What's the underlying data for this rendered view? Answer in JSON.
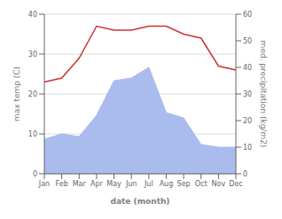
{
  "chart_data": {
    "type": "line",
    "categories": [
      "Jan",
      "Feb",
      "Mar",
      "Apr",
      "May",
      "Jun",
      "Jul",
      "Aug",
      "Sep",
      "Oct",
      "Nov",
      "Dec"
    ],
    "xlabel": "date (month)",
    "ylabel": "max temp (C)",
    "y2label": "med. precipitation (kg/m2)",
    "ylim": [
      0,
      40
    ],
    "yticks": [
      0,
      10,
      20,
      30,
      40
    ],
    "y2lim": [
      0,
      60
    ],
    "y2ticks": [
      0,
      10,
      20,
      30,
      40,
      50,
      60
    ],
    "grid": true,
    "series": [
      {
        "type": "line",
        "color": "#cc3333",
        "values": [
          23,
          24,
          29,
          37,
          36,
          36,
          37,
          37,
          35,
          34,
          27,
          26
        ]
      },
      {
        "type": "area",
        "color": "#aabbee",
        "axis": "y2",
        "values": [
          13,
          15,
          14,
          22,
          35,
          36,
          40,
          23,
          21,
          11,
          10,
          10
        ]
      }
    ]
  }
}
